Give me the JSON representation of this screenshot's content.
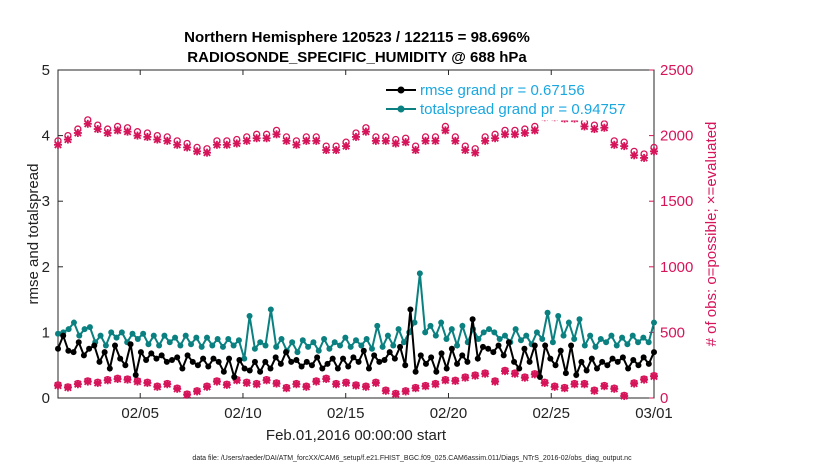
{
  "chart_data": {
    "type": "line",
    "title_line1": "Northern Hemisphere 120523 / 122115 = 98.696%",
    "title_line2": "RADIOSONDE_SPECIFIC_HUMIDITY @ 688 hPa",
    "xlabel": "Feb.01,2016 00:00:00 start",
    "ylabel_left": "rmse and totalspread",
    "ylabel_right": "# of obs: o=possible; ×=evaluated",
    "footnote": "data file: /Users/raeder/DAI/ATM_forcXX/CAM6_setup/f.e21.FHIST_BGC.f09_025.CAM6assim.011/Diags_NTrS_2016-02/obs_diag_output.nc",
    "x_range_days": [
      1,
      30
    ],
    "ylim_left": [
      0,
      5
    ],
    "ylim_right": [
      0,
      2500
    ],
    "left_ticks": [
      "0",
      "1",
      "2",
      "3",
      "4",
      "5"
    ],
    "right_ticks": [
      "0",
      "500",
      "1000",
      "1500",
      "2000",
      "2500"
    ],
    "x_ticks": [
      {
        "day": 5,
        "label": "02/05"
      },
      {
        "day": 10,
        "label": "02/10"
      },
      {
        "day": 15,
        "label": "02/15"
      },
      {
        "day": 20,
        "label": "02/20"
      },
      {
        "day": 25,
        "label": "02/25"
      },
      {
        "day": 30,
        "label": "03/01"
      }
    ],
    "legend": [
      {
        "label": "rmse grand pr = 0.67156",
        "color": "#000000"
      },
      {
        "label": "totalspread grand pr = 0.94757",
        "color": "#0a8080"
      }
    ],
    "colors": {
      "rmse": "#000000",
      "spread": "#0a8080",
      "obs": "#d6145a",
      "legend_text": "#1aa7e0"
    },
    "rmse": [
      0.75,
      0.95,
      0.72,
      0.7,
      0.85,
      0.65,
      0.75,
      0.8,
      0.55,
      0.7,
      0.45,
      0.8,
      0.6,
      0.5,
      0.82,
      0.35,
      0.7,
      0.58,
      0.68,
      0.6,
      0.65,
      0.55,
      0.58,
      0.62,
      0.45,
      0.65,
      0.55,
      0.5,
      0.6,
      0.48,
      0.6,
      0.55,
      0.4,
      0.6,
      0.32,
      0.58,
      0.45,
      0.42,
      0.55,
      0.4,
      0.55,
      0.45,
      0.62,
      0.52,
      0.7,
      0.55,
      0.58,
      0.48,
      0.55,
      0.5,
      0.62,
      0.45,
      0.52,
      0.6,
      0.45,
      0.6,
      0.48,
      0.62,
      0.55,
      0.72,
      0.45,
      0.65,
      0.55,
      0.58,
      0.7,
      0.6,
      0.78,
      0.5,
      1.35,
      0.4,
      0.65,
      0.52,
      0.62,
      0.4,
      0.68,
      0.45,
      0.75,
      0.52,
      0.65,
      0.55,
      1.2,
      0.6,
      0.78,
      0.75,
      0.7,
      0.8,
      0.65,
      0.85,
      0.55,
      0.45,
      0.75,
      0.55,
      0.8,
      0.32,
      0.8,
      0.6,
      0.5,
      0.72,
      0.38,
      0.8,
      0.35,
      0.55,
      0.42,
      0.6,
      0.45,
      0.55,
      0.5,
      0.6,
      0.55,
      0.62,
      0.45,
      0.58,
      0.5,
      0.62,
      0.52,
      0.7
    ],
    "spread": [
      0.98,
      1.0,
      1.05,
      1.15,
      0.95,
      1.05,
      1.08,
      0.85,
      0.95,
      0.8,
      1.0,
      0.92,
      1.0,
      0.85,
      0.98,
      0.9,
      0.98,
      0.82,
      0.95,
      0.8,
      0.95,
      0.85,
      0.92,
      0.8,
      0.95,
      0.82,
      0.92,
      0.78,
      0.92,
      0.8,
      0.9,
      0.78,
      0.9,
      0.8,
      0.88,
      0.6,
      1.25,
      0.75,
      0.85,
      0.8,
      1.35,
      0.78,
      0.9,
      0.72,
      0.85,
      0.7,
      0.88,
      0.78,
      0.85,
      0.72,
      0.9,
      0.75,
      0.85,
      0.8,
      0.92,
      0.78,
      0.88,
      0.8,
      0.9,
      0.75,
      1.1,
      0.78,
      0.95,
      0.8,
      1.05,
      0.85,
      1.0,
      1.15,
      1.9,
      1.0,
      1.1,
      0.95,
      1.15,
      0.9,
      1.05,
      0.8,
      1.1,
      0.85,
      1.05,
      0.9,
      1.0,
      1.05,
      1.0,
      0.9,
      0.95,
      0.85,
      1.05,
      0.88,
      0.95,
      0.82,
      1.0,
      0.9,
      1.3,
      0.85,
      1.25,
      0.95,
      1.15,
      0.9,
      1.2,
      0.8,
      0.95,
      0.78,
      0.9,
      0.85,
      0.95,
      0.8,
      0.92,
      0.82,
      0.95,
      0.85,
      0.92,
      0.85,
      1.15
    ],
    "obs_possible": [
      1960,
      2000,
      2050,
      2120,
      2080,
      2050,
      2070,
      2060,
      2030,
      2020,
      2000,
      1990,
      1960,
      1940,
      1910,
      1900,
      1960,
      1960,
      1970,
      1990,
      2010,
      2010,
      2040,
      1990,
      1960,
      1990,
      1990,
      1920,
      1920,
      1950,
      2020,
      2060,
      1990,
      1990,
      1970,
      1980,
      1920,
      1990,
      1990,
      2070,
      1990,
      1920,
      1900,
      1990,
      2010,
      2040,
      2040,
      2050,
      2070,
      2170,
      2170,
      2160,
      2160,
      2100,
      2080,
      2090,
      1960,
      1950,
      1880,
      1860,
      1910
    ],
    "obs_evaluated": [
      1930,
      1970,
      2020,
      2090,
      2050,
      2020,
      2040,
      2030,
      2000,
      1990,
      1970,
      1960,
      1930,
      1910,
      1880,
      1870,
      1930,
      1930,
      1940,
      1960,
      1980,
      1980,
      2010,
      1960,
      1930,
      1960,
      1960,
      1890,
      1890,
      1920,
      1990,
      2030,
      1960,
      1960,
      1940,
      1950,
      1890,
      1960,
      1960,
      2040,
      1960,
      1890,
      1870,
      1960,
      1980,
      2010,
      2010,
      2020,
      2040,
      2140,
      2140,
      2130,
      2130,
      2070,
      2050,
      2060,
      1930,
      1920,
      1850,
      1830,
      1880
    ],
    "obs_low_possible": [
      100,
      85,
      110,
      130,
      120,
      140,
      150,
      145,
      130,
      120,
      90,
      110,
      75,
      30,
      55,
      90,
      130,
      105,
      140,
      120,
      110,
      140,
      115,
      80,
      110,
      90,
      130,
      150,
      110,
      120,
      100,
      90,
      120,
      60,
      35,
      55,
      80,
      95,
      110,
      140,
      135,
      160,
      175,
      190,
      130,
      210,
      190,
      160,
      185,
      120,
      90,
      80,
      110,
      110,
      60,
      95,
      75,
      20,
      115,
      145,
      170
    ],
    "obs_low_evaluated": [
      95,
      80,
      105,
      125,
      115,
      135,
      145,
      140,
      125,
      115,
      85,
      105,
      70,
      25,
      50,
      85,
      125,
      100,
      135,
      115,
      105,
      135,
      110,
      75,
      105,
      85,
      125,
      145,
      105,
      115,
      95,
      85,
      115,
      55,
      30,
      50,
      75,
      90,
      105,
      135,
      130,
      155,
      170,
      185,
      125,
      205,
      185,
      155,
      180,
      115,
      85,
      75,
      105,
      105,
      55,
      90,
      70,
      15,
      110,
      140,
      165
    ]
  }
}
